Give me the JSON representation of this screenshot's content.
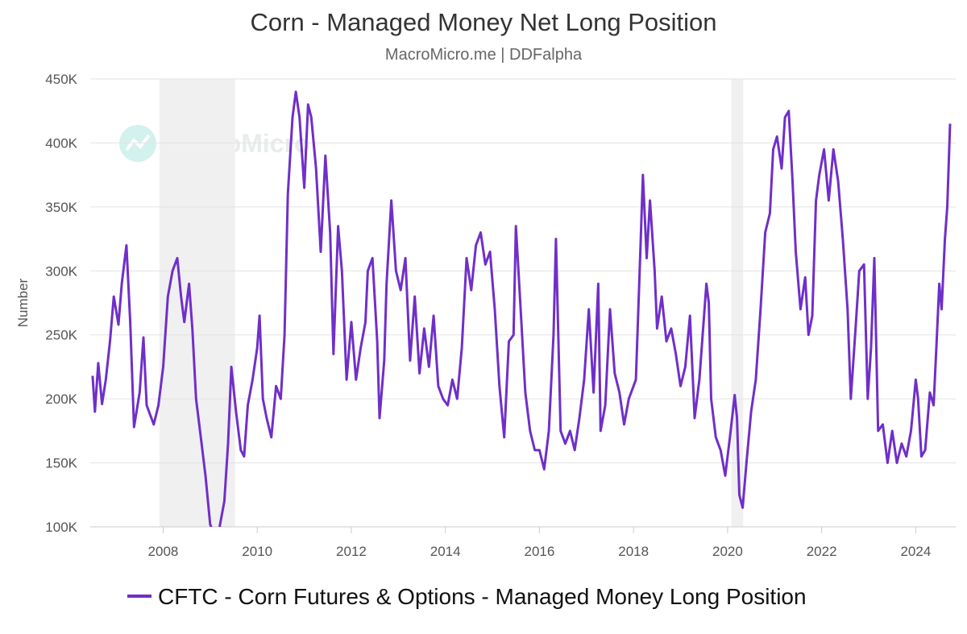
{
  "chart_data": {
    "type": "line",
    "title": "Corn - Managed Money Net Long Position",
    "subtitle": "MacroMicro.me | DDFalpha",
    "watermark": "MacroMicro",
    "y_label": "Number",
    "xlim": [
      2006.45,
      2024.85
    ],
    "xticks": [
      2008,
      2010,
      2012,
      2014,
      2016,
      2018,
      2020,
      2022,
      2024
    ],
    "ylim": [
      100000,
      450000
    ],
    "yticks": [
      {
        "value": 100000,
        "label": "100K"
      },
      {
        "value": 150000,
        "label": "150K"
      },
      {
        "value": 200000,
        "label": "200K"
      },
      {
        "value": 250000,
        "label": "250K"
      },
      {
        "value": 300000,
        "label": "300K"
      },
      {
        "value": 350000,
        "label": "350K"
      },
      {
        "value": 400000,
        "label": "400K"
      },
      {
        "value": 450000,
        "label": "450K"
      }
    ],
    "grid": true,
    "legend": "bottom",
    "shaded_ranges": [
      [
        2007.92,
        2009.53
      ],
      [
        2020.08,
        2020.33
      ]
    ],
    "x": [
      2006.5,
      2006.55,
      2006.62,
      2006.7,
      2006.78,
      2006.87,
      2006.95,
      2007.05,
      2007.12,
      2007.22,
      2007.3,
      2007.38,
      2007.5,
      2007.58,
      2007.65,
      2007.8,
      2007.9,
      2008.0,
      2008.1,
      2008.2,
      2008.3,
      2008.38,
      2008.45,
      2008.55,
      2008.62,
      2008.7,
      2008.8,
      2008.9,
      2009.0,
      2009.1,
      2009.2,
      2009.3,
      2009.38,
      2009.45,
      2009.55,
      2009.65,
      2009.72,
      2009.8,
      2009.9,
      2010.0,
      2010.05,
      2010.12,
      2010.2,
      2010.3,
      2010.4,
      2010.5,
      2010.58,
      2010.65,
      2010.75,
      2010.82,
      2010.9,
      2011.0,
      2011.08,
      2011.15,
      2011.25,
      2011.35,
      2011.45,
      2011.55,
      2011.62,
      2011.72,
      2011.8,
      2011.9,
      2012.0,
      2012.1,
      2012.2,
      2012.3,
      2012.35,
      2012.45,
      2012.55,
      2012.6,
      2012.7,
      2012.75,
      2012.85,
      2012.95,
      2013.05,
      2013.15,
      2013.25,
      2013.35,
      2013.45,
      2013.55,
      2013.65,
      2013.75,
      2013.85,
      2013.95,
      2014.05,
      2014.15,
      2014.25,
      2014.35,
      2014.45,
      2014.55,
      2014.65,
      2014.75,
      2014.85,
      2014.95,
      2015.05,
      2015.15,
      2015.25,
      2015.35,
      2015.45,
      2015.5,
      2015.6,
      2015.7,
      2015.8,
      2015.9,
      2016.0,
      2016.1,
      2016.2,
      2016.3,
      2016.35,
      2016.45,
      2016.55,
      2016.65,
      2016.75,
      2016.85,
      2016.95,
      2017.05,
      2017.15,
      2017.25,
      2017.3,
      2017.4,
      2017.5,
      2017.6,
      2017.7,
      2017.8,
      2017.9,
      2018.05,
      2018.15,
      2018.2,
      2018.28,
      2018.35,
      2018.45,
      2018.5,
      2018.6,
      2018.7,
      2018.8,
      2018.9,
      2019.0,
      2019.1,
      2019.2,
      2019.3,
      2019.4,
      2019.5,
      2019.55,
      2019.6,
      2019.65,
      2019.75,
      2019.85,
      2019.95,
      2020.05,
      2020.15,
      2020.2,
      2020.25,
      2020.32,
      2020.4,
      2020.5,
      2020.6,
      2020.7,
      2020.8,
      2020.9,
      2020.97,
      2021.05,
      2021.15,
      2021.22,
      2021.3,
      2021.38,
      2021.45,
      2021.55,
      2021.65,
      2021.72,
      2021.8,
      2021.88,
      2021.95,
      2022.05,
      2022.15,
      2022.25,
      2022.35,
      2022.45,
      2022.55,
      2022.62,
      2022.72,
      2022.8,
      2022.9,
      2022.98,
      2023.05,
      2023.12,
      2023.2,
      2023.3,
      2023.4,
      2023.5,
      2023.6,
      2023.7,
      2023.8,
      2023.9,
      2024.0,
      2024.05,
      2024.12,
      2024.2,
      2024.3,
      2024.38,
      2024.45,
      2024.5,
      2024.55,
      2024.62,
      2024.67,
      2024.73
    ],
    "series": [
      {
        "name": "CFTC - Corn Futures & Options - Managed Money Long Position",
        "color": "#6f2fc9",
        "values": [
          218000,
          190000,
          228000,
          196000,
          215000,
          245000,
          280000,
          258000,
          290000,
          320000,
          260000,
          178000,
          205000,
          248000,
          195000,
          180000,
          195000,
          225000,
          280000,
          300000,
          310000,
          280000,
          260000,
          290000,
          255000,
          200000,
          170000,
          140000,
          102000,
          92000,
          100000,
          120000,
          165000,
          225000,
          190000,
          160000,
          155000,
          195000,
          215000,
          240000,
          265000,
          200000,
          185000,
          170000,
          210000,
          200000,
          250000,
          360000,
          420000,
          440000,
          420000,
          365000,
          430000,
          420000,
          380000,
          315000,
          390000,
          330000,
          235000,
          335000,
          300000,
          215000,
          260000,
          215000,
          240000,
          260000,
          300000,
          310000,
          245000,
          185000,
          230000,
          290000,
          355000,
          300000,
          285000,
          310000,
          230000,
          280000,
          220000,
          255000,
          225000,
          265000,
          210000,
          200000,
          195000,
          215000,
          200000,
          240000,
          310000,
          285000,
          320000,
          330000,
          305000,
          315000,
          270000,
          210000,
          170000,
          245000,
          250000,
          335000,
          270000,
          205000,
          175000,
          160000,
          160000,
          145000,
          175000,
          250000,
          325000,
          175000,
          165000,
          175000,
          160000,
          185000,
          215000,
          270000,
          205000,
          290000,
          175000,
          195000,
          270000,
          220000,
          205000,
          180000,
          200000,
          215000,
          320000,
          375000,
          310000,
          355000,
          300000,
          255000,
          280000,
          245000,
          255000,
          235000,
          210000,
          225000,
          265000,
          185000,
          215000,
          265000,
          290000,
          275000,
          200000,
          170000,
          160000,
          140000,
          170000,
          203000,
          185000,
          125000,
          115000,
          150000,
          190000,
          215000,
          270000,
          330000,
          345000,
          395000,
          405000,
          380000,
          420000,
          425000,
          370000,
          315000,
          270000,
          295000,
          250000,
          265000,
          355000,
          375000,
          395000,
          355000,
          395000,
          370000,
          325000,
          270000,
          200000,
          255000,
          300000,
          305000,
          200000,
          240000,
          310000,
          175000,
          180000,
          150000,
          175000,
          150000,
          165000,
          155000,
          175000,
          215000,
          200000,
          155000,
          160000,
          205000,
          195000,
          250000,
          290000,
          270000,
          325000,
          350000,
          415000
        ]
      }
    ]
  }
}
